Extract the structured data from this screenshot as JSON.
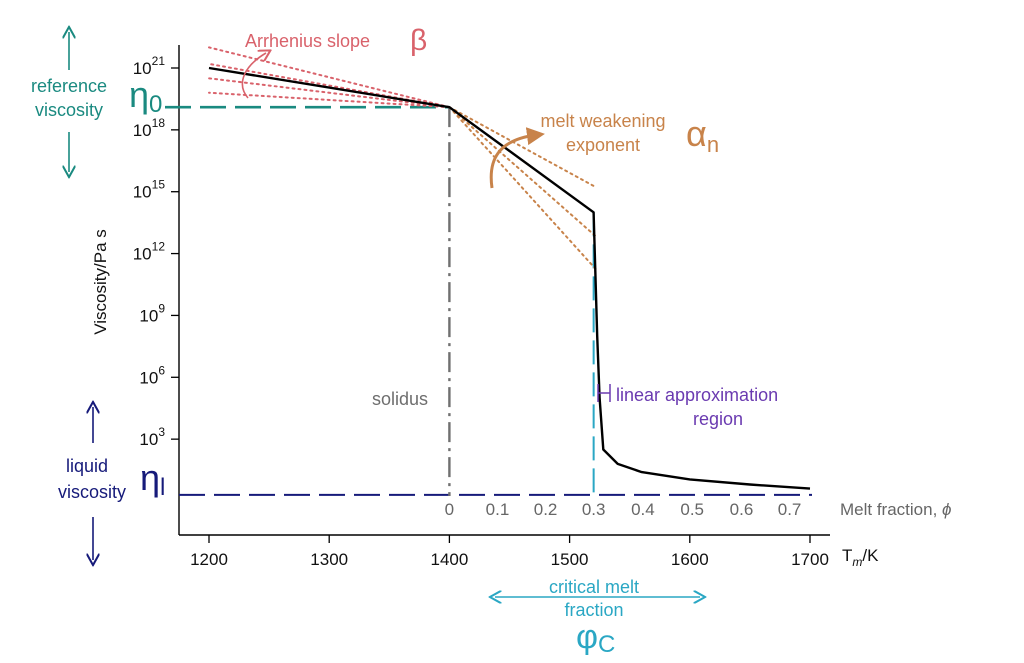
{
  "colors": {
    "curve": "#000000",
    "axis": "#000000",
    "teal": "#1a8a80",
    "navy": "#161a7a",
    "cyan": "#2aa7c4",
    "pink": "#d9626b",
    "orange": "#c8834a",
    "purple": "#6a3ab0",
    "gray": "#808080"
  },
  "chart_data": {
    "type": "line",
    "xlabel": "T",
    "xlabel_sub": "m",
    "xlabel_unit": "/K",
    "ylabel": "Viscosity/Pa s",
    "x_ticks": [
      1200,
      1300,
      1400,
      1500,
      1600,
      1700
    ],
    "xlim": [
      1175,
      1720
    ],
    "y_scale": "log",
    "y_tick_exponents": [
      3,
      6,
      9,
      12,
      15,
      18,
      21
    ],
    "y_tick_base": "10",
    "ylim_log10": [
      -1.4,
      22.2
    ],
    "melt_fraction_axis": {
      "label": "Melt fraction, ",
      "symbol": "ϕ",
      "ticks": [
        "0",
        "0.1",
        "0.2",
        "0.3",
        "0.4",
        "0.5",
        "0.6",
        "0.7"
      ],
      "tick_temperatures": [
        1400,
        1440,
        1480,
        1520,
        1561,
        1602,
        1643,
        1683
      ]
    },
    "series": [
      {
        "x": [
          1200,
          1400,
          1520,
          1521,
          1523,
          1525,
          1528,
          1540,
          1560,
          1600,
          1650,
          1700
        ],
        "log10_y": [
          21.0,
          19.1,
          14.0,
          12.0,
          8.0,
          5.0,
          2.5,
          1.8,
          1.4,
          1.05,
          0.8,
          0.6
        ]
      }
    ],
    "reference_lines": {
      "eta0_log10": 19.1,
      "etal_log10": 0.3,
      "solidus_T": 1400,
      "critical_T": 1520
    },
    "arrhenius_fan": {
      "pivot": [
        1400,
        19.1
      ],
      "left_T": 1200,
      "left_log10": [
        22.0,
        21.2,
        20.5,
        19.8
      ]
    },
    "melt_fan": {
      "pivot": [
        1400,
        19.1
      ],
      "right_T": 1520,
      "right_log10": [
        15.2,
        12.8,
        11.2
      ]
    }
  },
  "annotations": {
    "arrhenius_label": "Arrhenius slope",
    "beta": "β",
    "melt_weakening_1": "melt weakening",
    "melt_weakening_2": "exponent",
    "alpha": "α",
    "alpha_sub": "n",
    "reference_1": "reference",
    "reference_2": "viscosity",
    "eta0": "η",
    "eta0_sub": "0",
    "liquid_1": "liquid",
    "liquid_2": "viscosity",
    "etal": "η",
    "etal_sub": "l",
    "solidus": "solidus",
    "linear_1": "linear approximation",
    "linear_2": "region",
    "critical_1": "critical melt",
    "critical_2": "fraction",
    "phic": "φ",
    "phic_sub": "C"
  }
}
